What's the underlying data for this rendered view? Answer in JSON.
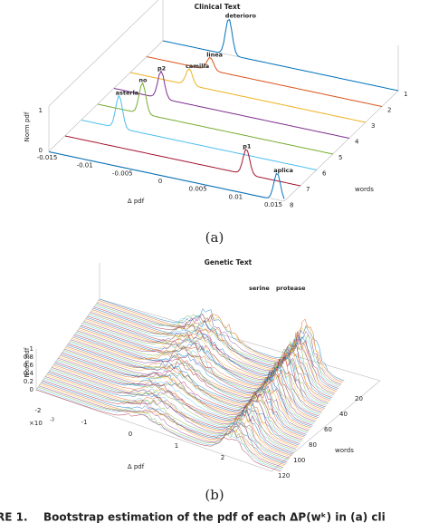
{
  "panel_a": {
    "title": "Clinical Text",
    "z_label": "Norm pdf",
    "z_ticks": [
      "0",
      "1"
    ],
    "x_label": "Δ pdf",
    "x_ticks": [
      "-0.015",
      "-0.01",
      "-0.005",
      "0",
      "0.005",
      "0.01",
      "0.015"
    ],
    "words_label": "words",
    "words_ticks": [
      "1",
      "2",
      "3",
      "4",
      "5",
      "6",
      "7",
      "8"
    ],
    "annotations": [
      "deterioro",
      "linea",
      "camilla",
      "p2",
      "no",
      "asterla",
      "p1",
      "aplica"
    ]
  },
  "panel_b": {
    "title": "Genetic Text",
    "z_label": "Norm pdf",
    "z_ticks": [
      "0",
      "0.2",
      "0.4",
      "0.6",
      "0.8",
      "1"
    ],
    "x_label": "Δ pdf",
    "x_exponent": "×10",
    "x_exponent_power": "-3",
    "x_ticks": [
      "-2",
      "-1",
      "0",
      "1",
      "2"
    ],
    "words_label": "words",
    "words_ticks": [
      "20",
      "40",
      "60",
      "80",
      "100",
      "120"
    ],
    "annotations": [
      "serine",
      "protease"
    ]
  },
  "captions": {
    "a": "(a)",
    "b": "(b)"
  },
  "figure_caption": {
    "label": "RE 1.",
    "text": "Bootstrap estimation of the pdf of each ΔP(wᵏ) in (a) cli"
  }
}
